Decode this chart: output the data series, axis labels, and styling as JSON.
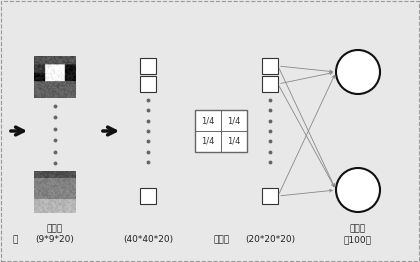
{
  "bg_color": "#e8e8e8",
  "fig_w": 4.2,
  "fig_h": 2.62,
  "dpi": 100,
  "arrow_color": "#111111",
  "square_color": "#ffffff",
  "square_edge": "#333333",
  "circle_color": "#ffffff",
  "circle_edge": "#111111",
  "line_color": "#888888",
  "pool_edge_color": "#666666",
  "font_size": 6.5,
  "label_conv": "卷积层\n(9*9*20)",
  "label_40": "(40*40*20)",
  "label_pool": "池化层",
  "label_20": "(20*20*20)",
  "label_hidden": "隐藏层\n（100）",
  "label_input_suffix": "层"
}
